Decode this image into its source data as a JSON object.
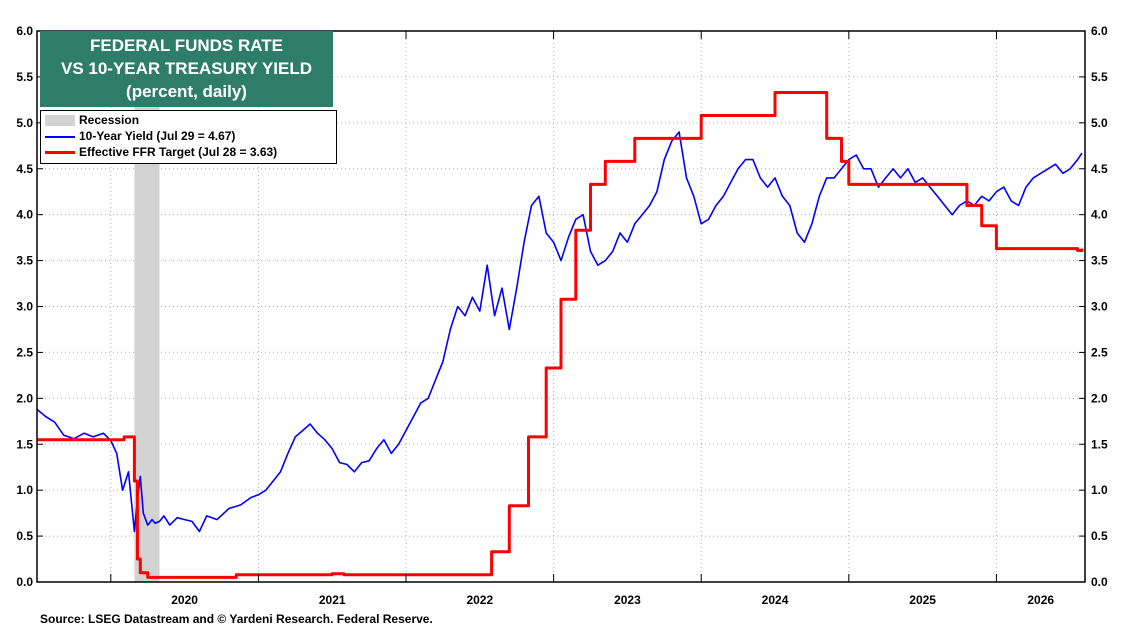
{
  "chart_data": {
    "type": "line",
    "title": "FEDERAL FUNDS RATE",
    "title_line2": "VS 10-YEAR TREASURY YIELD",
    "subtitle": "(percent, daily)",
    "source": "Source: LSEG Datastream and © Yardeni Research. Federal Reserve.",
    "ylim": [
      0,
      6
    ],
    "y_ticks": [
      "0.0",
      "0.5",
      "1.0",
      "1.5",
      "2.0",
      "2.5",
      "3.0",
      "3.5",
      "4.0",
      "4.5",
      "5.0",
      "5.5",
      "6.0"
    ],
    "x_tick_labels": [
      "2020",
      "2021",
      "2022",
      "2023",
      "2024",
      "2025",
      "2026"
    ],
    "xlim": [
      2019.5,
      2026.6
    ],
    "y_axes": "both",
    "grid": true,
    "legend_position": "top-left",
    "recessions": [
      [
        2020.16,
        2020.33
      ]
    ],
    "legend": {
      "recession": "Recession",
      "yield_label": "10-Year Yield (Jul 29 = 4.67)",
      "ffr_label": "Effective FFR Target (Jul 28 = 3.63)"
    },
    "colors": {
      "yield": "#0000ff",
      "ffr": "#ff0000",
      "recession": "#d3d3d3",
      "title_bg": "#2e7d6a"
    },
    "series": [
      {
        "name": "10-Year Yield (Jul 29 = 4.67)",
        "color": "#0000ff",
        "x": [
          2019.5,
          2019.56,
          2019.62,
          2019.68,
          2019.75,
          2019.82,
          2019.88,
          2019.95,
          2020.0,
          2020.04,
          2020.08,
          2020.12,
          2020.16,
          2020.18,
          2020.2,
          2020.22,
          2020.25,
          2020.28,
          2020.3,
          2020.33,
          2020.36,
          2020.4,
          2020.45,
          2020.5,
          2020.55,
          2020.6,
          2020.65,
          2020.72,
          2020.8,
          2020.88,
          2020.95,
          2021.0,
          2021.05,
          2021.1,
          2021.15,
          2021.2,
          2021.25,
          2021.3,
          2021.35,
          2021.4,
          2021.45,
          2021.5,
          2021.55,
          2021.6,
          2021.65,
          2021.7,
          2021.75,
          2021.8,
          2021.85,
          2021.9,
          2021.95,
          2022.0,
          2022.05,
          2022.1,
          2022.15,
          2022.2,
          2022.25,
          2022.3,
          2022.35,
          2022.4,
          2022.45,
          2022.5,
          2022.55,
          2022.6,
          2022.65,
          2022.7,
          2022.75,
          2022.8,
          2022.85,
          2022.9,
          2022.95,
          2023.0,
          2023.05,
          2023.1,
          2023.15,
          2023.2,
          2023.25,
          2023.3,
          2023.35,
          2023.4,
          2023.45,
          2023.5,
          2023.55,
          2023.6,
          2023.65,
          2023.7,
          2023.75,
          2023.8,
          2023.85,
          2023.9,
          2023.95,
          2024.0,
          2024.05,
          2024.1,
          2024.15,
          2024.2,
          2024.25,
          2024.3,
          2024.35,
          2024.4,
          2024.45,
          2024.5,
          2024.55,
          2024.6,
          2024.65,
          2024.7,
          2024.75,
          2024.8,
          2024.85,
          2024.9,
          2024.95,
          2025.0,
          2025.05,
          2025.1,
          2025.15,
          2025.2,
          2025.25,
          2025.3,
          2025.35,
          2025.4,
          2025.45,
          2025.5,
          2025.55,
          2025.6,
          2025.65,
          2025.7,
          2025.75,
          2025.8,
          2025.85,
          2025.9,
          2025.95,
          2026.0,
          2026.05,
          2026.1,
          2026.15,
          2026.2,
          2026.25,
          2026.3,
          2026.35,
          2026.4,
          2026.45,
          2026.5,
          2026.55,
          2026.58
        ],
        "values": [
          1.88,
          1.8,
          1.74,
          1.6,
          1.56,
          1.62,
          1.58,
          1.62,
          1.54,
          1.4,
          1.0,
          1.2,
          0.55,
          0.9,
          1.15,
          0.75,
          0.62,
          0.68,
          0.64,
          0.66,
          0.72,
          0.62,
          0.7,
          0.68,
          0.66,
          0.55,
          0.72,
          0.68,
          0.8,
          0.84,
          0.92,
          0.95,
          1.0,
          1.1,
          1.2,
          1.4,
          1.58,
          1.65,
          1.72,
          1.62,
          1.55,
          1.45,
          1.3,
          1.28,
          1.2,
          1.3,
          1.32,
          1.45,
          1.55,
          1.4,
          1.5,
          1.65,
          1.8,
          1.95,
          2.0,
          2.2,
          2.4,
          2.75,
          3.0,
          2.9,
          3.1,
          2.95,
          3.45,
          2.9,
          3.2,
          2.75,
          3.2,
          3.7,
          4.1,
          4.2,
          3.8,
          3.7,
          3.5,
          3.75,
          3.95,
          4.0,
          3.6,
          3.45,
          3.5,
          3.6,
          3.8,
          3.7,
          3.9,
          4.0,
          4.1,
          4.25,
          4.6,
          4.8,
          4.9,
          4.4,
          4.2,
          3.9,
          3.95,
          4.1,
          4.2,
          4.35,
          4.5,
          4.6,
          4.6,
          4.4,
          4.3,
          4.4,
          4.2,
          4.1,
          3.8,
          3.7,
          3.9,
          4.2,
          4.4,
          4.4,
          4.5,
          4.6,
          4.65,
          4.5,
          4.5,
          4.3,
          4.4,
          4.5,
          4.4,
          4.5,
          4.35,
          4.4,
          4.3,
          4.2,
          4.1,
          4.0,
          4.1,
          4.15,
          4.1,
          4.2,
          4.15,
          4.25,
          4.3,
          4.15,
          4.1,
          4.3,
          4.4,
          4.45,
          4.5,
          4.55,
          4.45,
          4.5,
          4.6,
          4.67
        ]
      },
      {
        "name": "Effective FFR Target (Jul 28 = 3.63)",
        "color": "#ff0000",
        "step": true,
        "x": [
          2019.5,
          2019.58,
          2019.65,
          2019.8,
          2020.0,
          2020.09,
          2020.16,
          2020.18,
          2020.2,
          2020.25,
          2020.5,
          2020.85,
          2021.5,
          2021.58,
          2021.75,
          2022.0,
          2022.2,
          2022.35,
          2022.45,
          2022.58,
          2022.7,
          2022.83,
          2022.95,
          2023.05,
          2023.15,
          2023.25,
          2023.35,
          2023.55,
          2024.0,
          2024.5,
          2024.72,
          2024.85,
          2024.95,
          2025.0,
          2025.3,
          2025.35,
          2025.45,
          2025.72,
          2025.8,
          2025.9,
          2026.0,
          2026.25,
          2026.45,
          2026.55,
          2026.58
        ],
        "values": [
          1.55,
          1.55,
          1.55,
          1.55,
          1.55,
          1.58,
          1.1,
          0.25,
          0.1,
          0.05,
          0.05,
          0.08,
          0.09,
          0.08,
          0.08,
          0.08,
          0.08,
          0.08,
          0.08,
          0.33,
          0.83,
          1.58,
          2.33,
          3.08,
          3.83,
          4.33,
          4.58,
          4.83,
          5.08,
          5.33,
          5.33,
          4.83,
          4.58,
          4.33,
          4.33,
          4.33,
          4.33,
          4.33,
          4.1,
          3.88,
          3.63,
          3.63,
          3.63,
          3.61,
          3.63
        ]
      }
    ]
  }
}
